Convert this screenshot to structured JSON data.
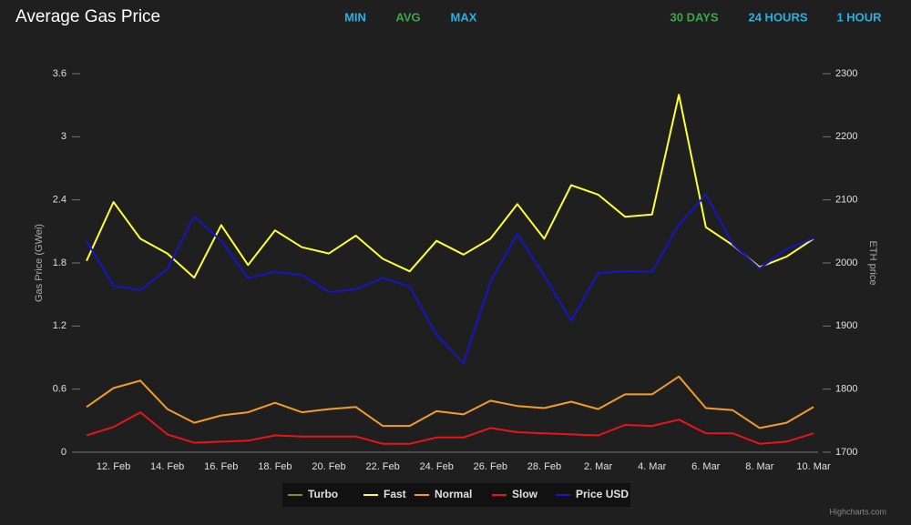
{
  "chart_data": {
    "type": "line",
    "title": "Average Gas Price",
    "buttons": [
      {
        "label": "MIN",
        "color": "#2ab0e0"
      },
      {
        "label": "AVG",
        "color": "#3ea64a"
      },
      {
        "label": "MAX",
        "color": "#2ab0e0"
      }
    ],
    "range_buttons": [
      {
        "label": "30 DAYS",
        "color": "#3ea64a"
      },
      {
        "label": "24 HOURS",
        "color": "#2ab0e0"
      },
      {
        "label": "1 HOUR",
        "color": "#2ab0e0"
      }
    ],
    "y_label": "Gas Price (GWei)",
    "y2_label": "ETH price",
    "credits": "Highcharts.com",
    "categories": [
      null,
      "12. Feb",
      null,
      "14. Feb",
      null,
      "16. Feb",
      null,
      "18. Feb",
      null,
      "20. Feb",
      null,
      "22. Feb",
      null,
      "24. Feb",
      null,
      "26. Feb",
      null,
      "28. Feb",
      null,
      "2. Mar",
      null,
      "4. Mar",
      null,
      "6. Mar",
      null,
      "8. Mar",
      null,
      "10. Mar"
    ],
    "ylim": [
      0,
      3.6
    ],
    "yticks": [
      0,
      0.6,
      1.2,
      1.8,
      2.4,
      3,
      3.6
    ],
    "y2lim": [
      1700,
      2300
    ],
    "y2ticks": [
      1700,
      1800,
      1900,
      2000,
      2100,
      2200,
      2300
    ],
    "grid": false,
    "legend": "bottom",
    "series": [
      {
        "name": "Turbo",
        "color": "#8c8c1e",
        "values": [
          null,
          null,
          null,
          null,
          null,
          null,
          null,
          null,
          null,
          null,
          null,
          null,
          null,
          null,
          null,
          null,
          null,
          null,
          null,
          null,
          null,
          null,
          null,
          null,
          null,
          null,
          null,
          null
        ]
      },
      {
        "name": "Fast",
        "color": "#ffff33",
        "values": [
          1.82,
          2.38,
          2.03,
          1.89,
          1.66,
          2.16,
          1.78,
          2.11,
          1.95,
          1.89,
          2.06,
          1.84,
          1.72,
          2.01,
          1.88,
          2.03,
          2.36,
          2.03,
          2.54,
          2.45,
          2.24,
          2.26,
          3.4,
          2.14,
          1.97,
          1.76,
          1.86,
          2.03
        ]
      },
      {
        "name": "Normal",
        "color": "#f39c26",
        "values": [
          0.43,
          0.61,
          0.68,
          0.41,
          0.28,
          0.35,
          0.38,
          0.47,
          0.38,
          0.41,
          0.43,
          0.25,
          0.25,
          0.39,
          0.36,
          0.49,
          0.44,
          0.42,
          0.48,
          0.41,
          0.55,
          0.55,
          0.72,
          0.42,
          0.4,
          0.23,
          0.28,
          0.43
        ]
      },
      {
        "name": "Slow",
        "color": "#e8141a",
        "values": [
          0.16,
          0.24,
          0.38,
          0.17,
          0.09,
          0.1,
          0.11,
          0.16,
          0.15,
          0.15,
          0.15,
          0.08,
          0.08,
          0.14,
          0.14,
          0.23,
          0.19,
          0.18,
          0.17,
          0.16,
          0.26,
          0.25,
          0.31,
          0.18,
          0.18,
          0.08,
          0.1,
          0.18
        ]
      },
      {
        "name": "Price USD",
        "color": "#1515c8",
        "axis": "y2",
        "values": [
          2035,
          1964,
          1957,
          1990,
          2074,
          2035,
          1976,
          1986,
          1981,
          1954,
          1958,
          1976,
          1963,
          1886,
          1841,
          1970,
          2046,
          1980,
          1908,
          1984,
          1987,
          1986,
          2061,
          2108,
          2030,
          1991,
          2022,
          2039
        ]
      }
    ]
  }
}
